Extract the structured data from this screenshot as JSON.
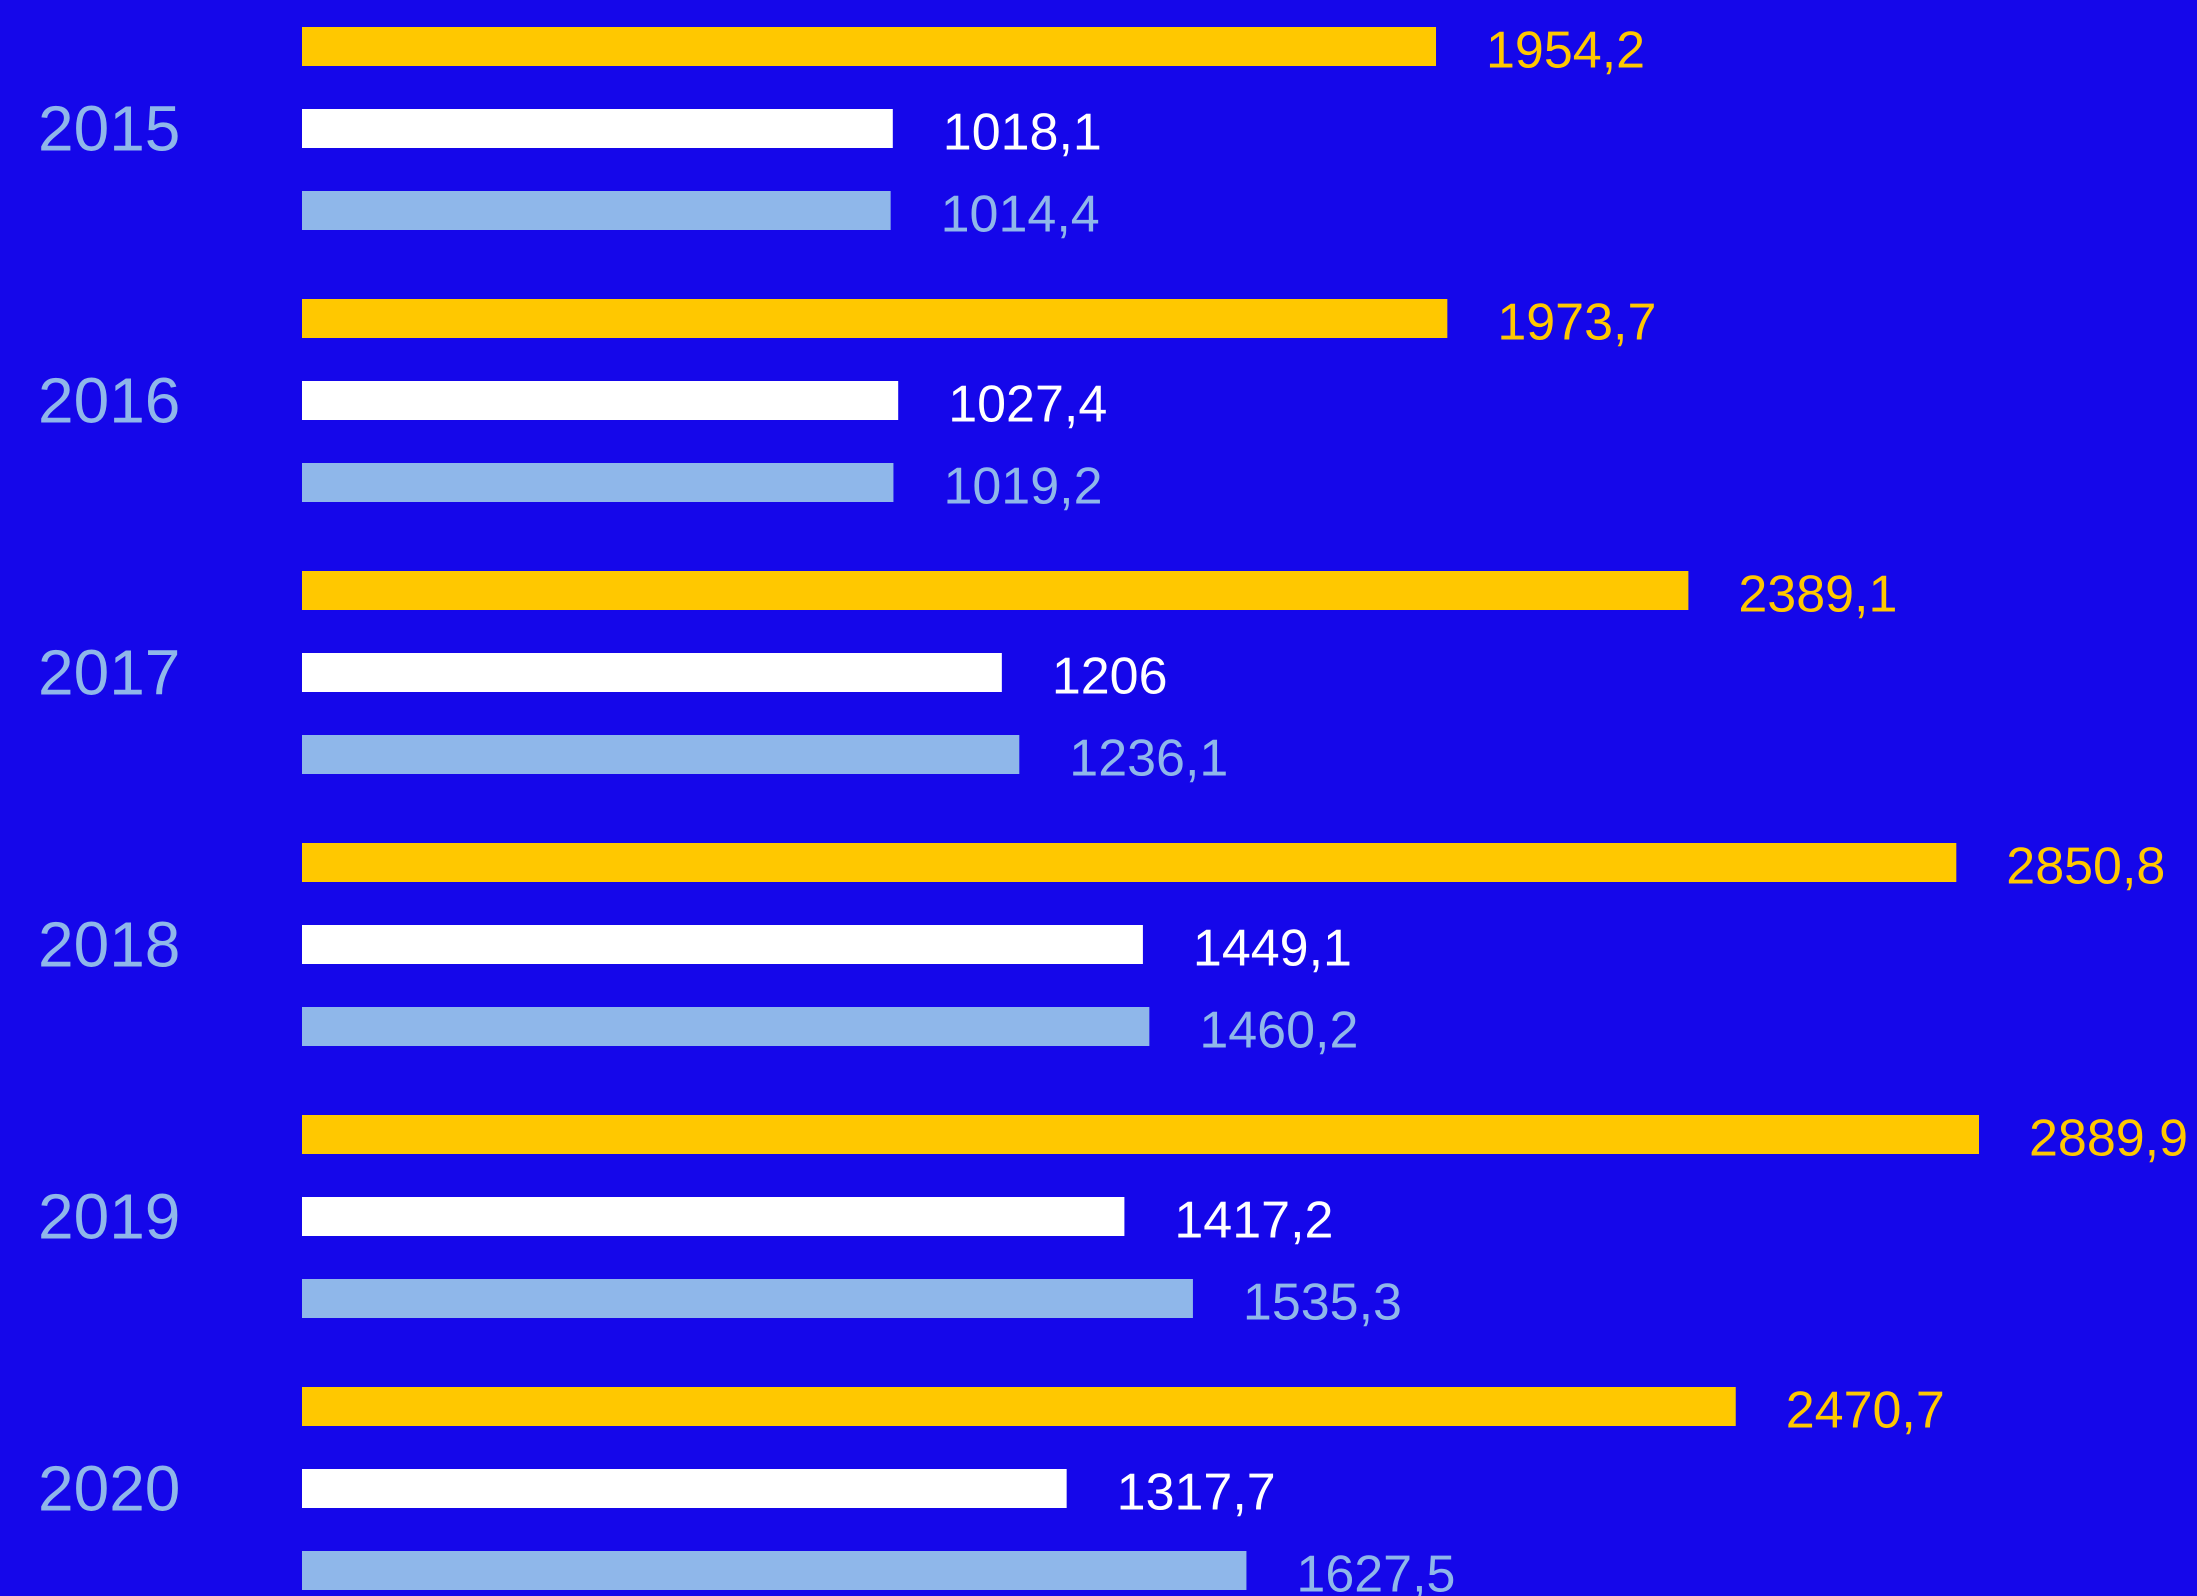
{
  "chart_data": {
    "type": "bar",
    "orientation": "horizontal",
    "title": "",
    "xlabel": "",
    "ylabel": "",
    "grid": false,
    "legend": "none",
    "categories": [
      "2015",
      "2016",
      "2017",
      "2018",
      "2019",
      "2020"
    ],
    "series": [
      {
        "color": "#FFC800",
        "values": [
          1954.2,
          1973.7,
          2389.1,
          2850.8,
          2889.9,
          2470.7
        ],
        "labels": [
          "1954,2",
          "1973,7",
          "2389,1",
          "2850,8",
          "2889,9",
          "2470,7"
        ]
      },
      {
        "color": "#FFFFFF",
        "values": [
          1018.1,
          1027.4,
          1206,
          1449.1,
          1417.2,
          1317.7
        ],
        "labels": [
          "1018,1",
          "1027,4",
          "1206",
          "1449,1",
          "1417,2",
          "1317,7"
        ]
      },
      {
        "color": "#8FB7EA",
        "values": [
          1014.4,
          1019.2,
          1236.1,
          1460.2,
          1535.3,
          1627.5
        ],
        "labels": [
          "1014,4",
          "1019,2",
          "1236,1",
          "1460,2",
          "1535,3",
          "1627,5"
        ]
      }
    ],
    "xlim": [
      0,
      2889.9
    ]
  },
  "colors": {
    "background": "#1507EA",
    "year_label": "#8FB7EA"
  }
}
